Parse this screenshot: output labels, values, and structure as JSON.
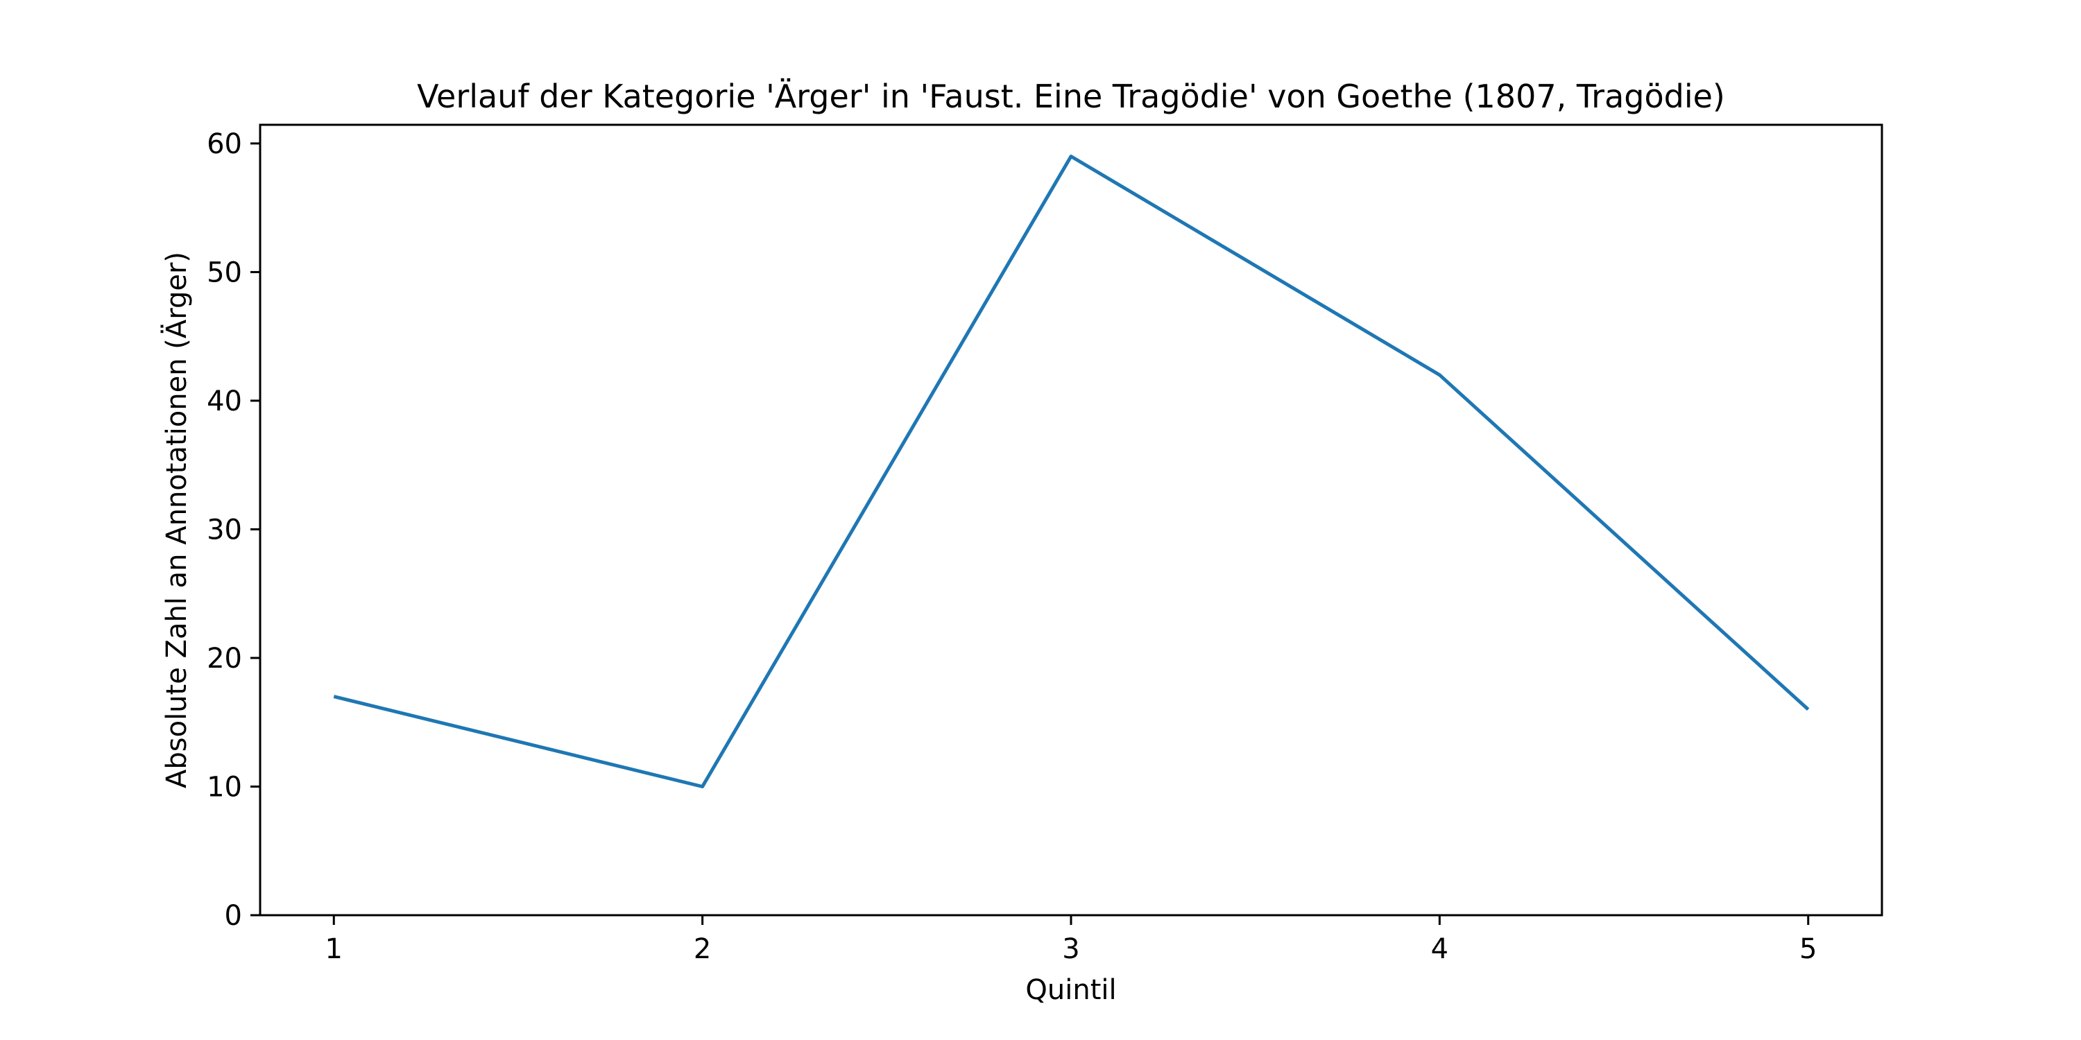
{
  "chart_data": {
    "type": "line",
    "title": "Verlauf der Kategorie 'Ärger' in 'Faust. Eine Tragödie' von Goethe (1807, Tragödie)",
    "xlabel": "Quintil",
    "ylabel": "Absolute Zahl an Annotationen (Ärger)",
    "x": [
      1,
      2,
      3,
      4,
      5
    ],
    "series": [
      {
        "values": [
          17,
          10,
          59,
          42,
          16
        ],
        "color": "#1f77b4"
      }
    ],
    "xlim": [
      0.8,
      5.2
    ],
    "ylim": [
      0,
      61.45
    ],
    "xticks": [
      "1",
      "2",
      "3",
      "4",
      "5"
    ],
    "yticks": [
      "0",
      "10",
      "20",
      "30",
      "40",
      "50",
      "60"
    ],
    "grid": false,
    "legend": "none"
  }
}
